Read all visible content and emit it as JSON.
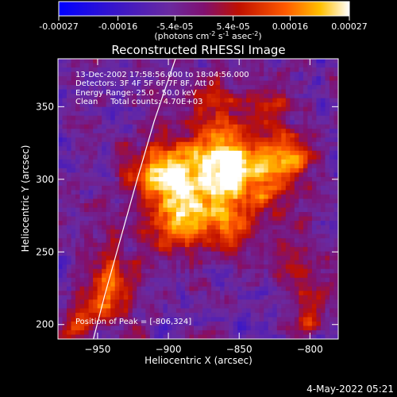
{
  "colorbar": {
    "tick_labels": [
      "-0.00027",
      "-0.00016",
      "-5.4e-05",
      "5.4e-05",
      "0.00016",
      "0.00027"
    ],
    "units_label_parts": [
      "(photons cm",
      "-2",
      " s",
      "-1",
      " asec",
      "-2",
      ")"
    ],
    "range": [
      -0.00027,
      0.00027
    ]
  },
  "chart_data": {
    "type": "heatmap",
    "title": "Reconstructed RHESSI Image",
    "xlabel": "Heliocentric X (arcsec)",
    "ylabel": "Heliocentric Y (arcsec)",
    "xlim": [
      -978,
      -780
    ],
    "ylim": [
      190,
      383
    ],
    "x_ticks": [
      -950,
      -900,
      -850,
      -800
    ],
    "y_ticks": [
      200,
      250,
      300,
      350
    ],
    "x_tick_labels": [
      "−950",
      "−900",
      "−850",
      "−800"
    ],
    "y_tick_labels": [
      "200",
      "250",
      "300",
      "350"
    ],
    "annotations": [
      "13-Dec-2002 17:58:56.000 to 18:04:56.000",
      "Detectors: 3F 4F 5F 6F 7F 8F, Att 0",
      "Energy Range: 25.0 - 50.0 keV",
      "Clean     Total counts: 4.70E+03"
    ],
    "peak_label": "Position of Peak = [-806,324]",
    "peak_position": [
      -806,
      324
    ],
    "limb_curve": [
      [
        -953,
        190
      ],
      [
        -945,
        220
      ],
      [
        -935,
        255
      ],
      [
        -922,
        300
      ],
      [
        -910,
        340
      ],
      [
        -895,
        383
      ]
    ],
    "bright_regions": [
      {
        "x": -905,
        "y": 305,
        "sigma": 16,
        "amp": 0.00024
      },
      {
        "x": -880,
        "y": 290,
        "sigma": 20,
        "amp": 0.0002
      },
      {
        "x": -860,
        "y": 315,
        "sigma": 16,
        "amp": 0.00022
      },
      {
        "x": -840,
        "y": 300,
        "sigma": 18,
        "amp": 0.00018
      },
      {
        "x": -815,
        "y": 315,
        "sigma": 12,
        "amp": 0.0002
      },
      {
        "x": -895,
        "y": 270,
        "sigma": 14,
        "amp": 0.00016
      },
      {
        "x": -855,
        "y": 265,
        "sigma": 12,
        "amp": 0.00014
      },
      {
        "x": -940,
        "y": 235,
        "sigma": 12,
        "amp": 0.00016
      },
      {
        "x": -945,
        "y": 215,
        "sigma": 10,
        "amp": 0.00018
      },
      {
        "x": -965,
        "y": 200,
        "sigma": 8,
        "amp": 0.00016
      },
      {
        "x": -810,
        "y": 240,
        "sigma": 12,
        "amp": 0.00014
      },
      {
        "x": -830,
        "y": 350,
        "sigma": 12,
        "amp": 0.00012
      },
      {
        "x": -870,
        "y": 350,
        "sigma": 14,
        "amp": 0.00012
      },
      {
        "x": -800,
        "y": 205,
        "sigma": 10,
        "amp": 0.00013
      }
    ]
  },
  "footer": {
    "date": "4-May-2022 05:21"
  }
}
